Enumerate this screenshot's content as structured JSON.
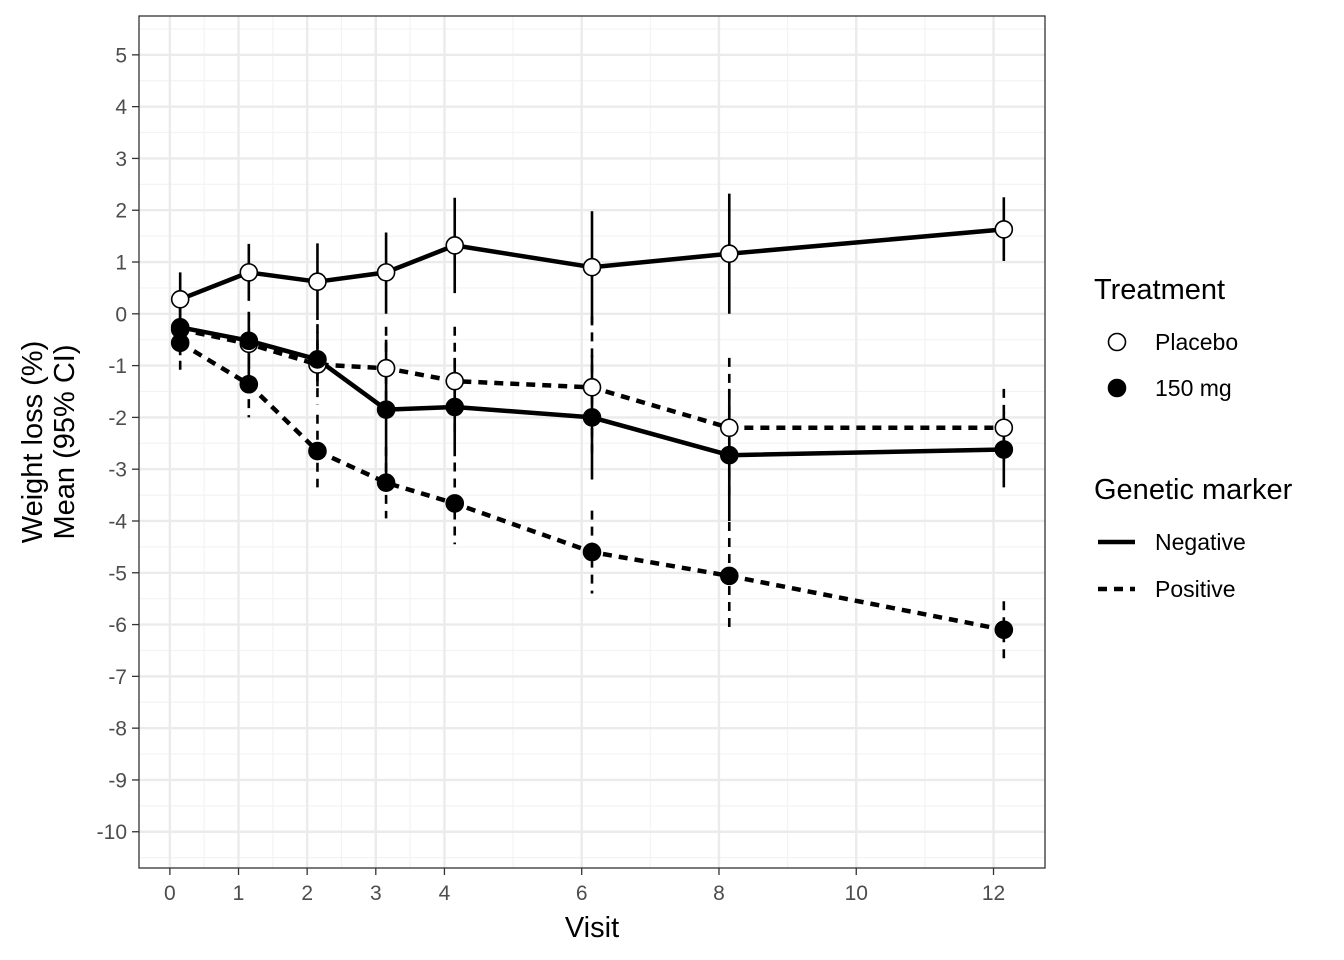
{
  "chart_data": {
    "type": "line",
    "xlabel": "Visit",
    "ylabel_lines": [
      "Weight loss (%)",
      "Mean (95% CI)"
    ],
    "xlim": [
      -0.45,
      12.75
    ],
    "ylim": [
      -10.7,
      5.75
    ],
    "x_ticks": [
      0,
      1,
      2,
      3,
      4,
      6,
      8,
      10,
      12
    ],
    "y_ticks": [
      5,
      4,
      3,
      2,
      1,
      0,
      -1,
      -2,
      -3,
      -4,
      -5,
      -6,
      -7,
      -8,
      -9,
      -10
    ],
    "grid": true,
    "legend_position": "right",
    "series": [
      {
        "name": "Placebo / Negative",
        "treatment": "Placebo",
        "marker": "Negative",
        "points": [
          {
            "x": 0.15,
            "y": 0.28,
            "lo": -0.25,
            "hi": 0.8
          },
          {
            "x": 1.15,
            "y": 0.8,
            "lo": 0.25,
            "hi": 1.35
          },
          {
            "x": 2.15,
            "y": 0.62,
            "lo": -0.12,
            "hi": 1.36
          },
          {
            "x": 3.15,
            "y": 0.8,
            "lo": 0.0,
            "hi": 1.57
          },
          {
            "x": 4.15,
            "y": 1.32,
            "lo": 0.4,
            "hi": 2.24
          },
          {
            "x": 6.15,
            "y": 0.9,
            "lo": -0.2,
            "hi": 1.98
          },
          {
            "x": 8.15,
            "y": 1.16,
            "lo": 0.0,
            "hi": 2.32
          },
          {
            "x": 12.15,
            "y": 1.63,
            "lo": 1.02,
            "hi": 2.25
          }
        ]
      },
      {
        "name": "Placebo / Positive",
        "treatment": "Placebo",
        "marker": "Positive",
        "points": [
          {
            "x": 0.15,
            "y": -0.3,
            "lo": -0.8,
            "hi": 0.2
          },
          {
            "x": 1.15,
            "y": -0.58,
            "lo": -1.2,
            "hi": 0.04
          },
          {
            "x": 2.15,
            "y": -0.98,
            "lo": -1.75,
            "hi": -0.2
          },
          {
            "x": 3.15,
            "y": -1.05,
            "lo": -1.85,
            "hi": -0.25
          },
          {
            "x": 4.15,
            "y": -1.3,
            "lo": -2.35,
            "hi": -0.25
          },
          {
            "x": 6.15,
            "y": -1.42,
            "lo": -2.8,
            "hi": -0.05
          },
          {
            "x": 8.15,
            "y": -2.2,
            "lo": -3.5,
            "hi": -0.85
          },
          {
            "x": 12.15,
            "y": -2.2,
            "lo": -2.95,
            "hi": -1.45
          }
        ]
      },
      {
        "name": "150 mg / Negative",
        "treatment": "150 mg",
        "marker": "Negative",
        "points": [
          {
            "x": 0.15,
            "y": -0.26,
            "lo": -0.75,
            "hi": 0.25
          },
          {
            "x": 1.15,
            "y": -0.52,
            "lo": -1.05,
            "hi": 0.0
          },
          {
            "x": 2.15,
            "y": -0.88,
            "lo": -1.4,
            "hi": -0.35
          },
          {
            "x": 3.15,
            "y": -1.85,
            "lo": -3.2,
            "hi": -0.5
          },
          {
            "x": 4.15,
            "y": -1.8,
            "lo": -2.75,
            "hi": -0.85
          },
          {
            "x": 6.15,
            "y": -2.0,
            "lo": -3.2,
            "hi": -0.8
          },
          {
            "x": 8.15,
            "y": -2.73,
            "lo": -4.0,
            "hi": -1.45
          },
          {
            "x": 12.15,
            "y": -2.62,
            "lo": -3.35,
            "hi": -1.9
          }
        ]
      },
      {
        "name": "150 mg / Positive",
        "treatment": "150 mg",
        "marker": "Positive",
        "points": [
          {
            "x": 0.15,
            "y": -0.56,
            "lo": -1.15,
            "hi": 0.02
          },
          {
            "x": 1.15,
            "y": -1.36,
            "lo": -2.0,
            "hi": -0.72
          },
          {
            "x": 2.15,
            "y": -2.65,
            "lo": -3.35,
            "hi": -1.95
          },
          {
            "x": 3.15,
            "y": -3.26,
            "lo": -3.95,
            "hi": -2.57
          },
          {
            "x": 4.15,
            "y": -3.66,
            "lo": -4.45,
            "hi": -2.87
          },
          {
            "x": 6.15,
            "y": -4.6,
            "lo": -5.4,
            "hi": -3.8
          },
          {
            "x": 8.15,
            "y": -5.06,
            "lo": -6.1,
            "hi": -4.02
          },
          {
            "x": 12.15,
            "y": -6.1,
            "lo": -6.65,
            "hi": -5.55
          }
        ]
      }
    ],
    "legend": {
      "treatment_title": "Treatment",
      "treatment_items": [
        {
          "label": "Placebo",
          "fill": "#ffffff"
        },
        {
          "label": "150 mg",
          "fill": "#000000"
        }
      ],
      "marker_title": "Genetic marker",
      "marker_items": [
        {
          "label": "Negative",
          "dash": "solid"
        },
        {
          "label": "Positive",
          "dash": "dashed"
        }
      ]
    },
    "colors": {
      "line": "#000000",
      "grid_major": "#ebebeb",
      "grid_minor": "#f3f3f3",
      "panel_border": "#333333"
    }
  }
}
